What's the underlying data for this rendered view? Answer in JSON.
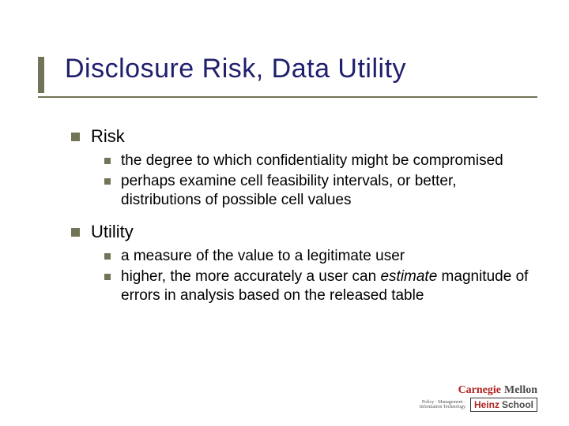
{
  "title": "Disclosure Risk, Data Utility",
  "sections": [
    {
      "label": "Risk",
      "items": [
        {
          "text": "the degree to which confidentiality might be compromised"
        },
        {
          "text": "perhaps examine cell feasibility intervals, or better, distributions of possible cell values"
        }
      ]
    },
    {
      "label": "Utility",
      "items": [
        {
          "text": "a measure of the value to a legitimate user"
        },
        {
          "pre": "higher, the more accurately a user can ",
          "em": "estimate",
          "post": " magnitude of errors in analysis based on the released table"
        }
      ]
    }
  ],
  "logo": {
    "carnegie": "Carnegie",
    "mellon": "Mellon",
    "tag1": "Policy · Management ·",
    "tag2": "Information Technology",
    "heinz": "Heinz",
    "school": "School"
  },
  "colors": {
    "accent": "#737358",
    "title": "#1f1f6e",
    "cm_red": "#b22222",
    "cm_gray": "#4a4a4a"
  }
}
